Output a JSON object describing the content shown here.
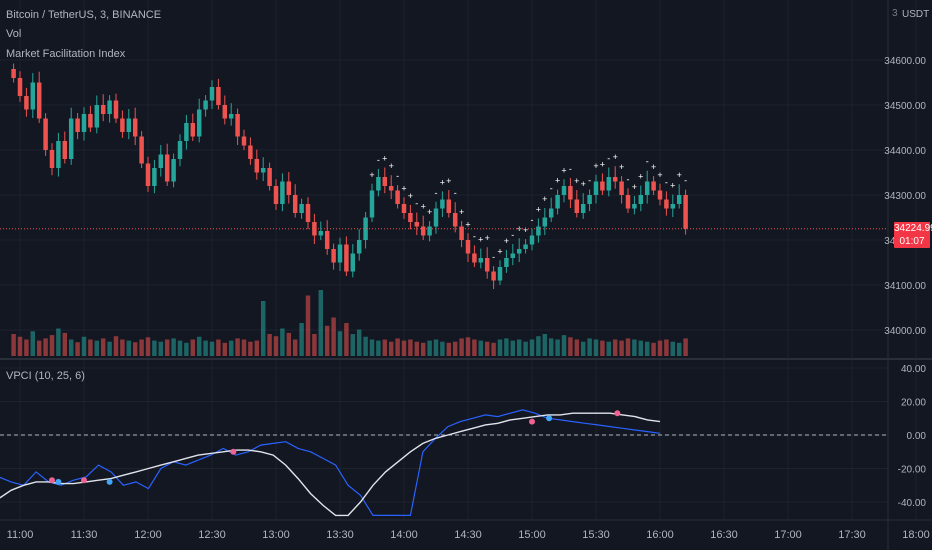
{
  "header": {
    "symbol_title": "Bitcoin / TetherUS, 3, BINANCE",
    "vol_label": "Vol",
    "mfi_label": "Market Facilitation Index",
    "vpci_label": "VPCI (10, 25, 6)",
    "currency_badge": "USDT",
    "axis_mode": "3"
  },
  "price_axis": {
    "ticks": [
      "34600.00",
      "34500.00",
      "34400.00",
      "34300.00",
      "34200.00",
      "34100.00",
      "34000.00"
    ],
    "tick_values": [
      34600,
      34500,
      34400,
      34300,
      34200,
      34100,
      34000
    ],
    "current_price": "34224.99",
    "countdown": "01:07"
  },
  "vpci_axis": {
    "ticks": [
      "40.00",
      "20.00",
      "0.00",
      "-20.00",
      "-40.00"
    ],
    "tick_values": [
      40,
      20,
      0,
      -20,
      -40
    ]
  },
  "time_axis": {
    "labels": [
      "11:00",
      "11:30",
      "12:00",
      "12:30",
      "13:00",
      "13:30",
      "14:00",
      "14:30",
      "15:00",
      "15:30",
      "16:00",
      "16:30",
      "17:00",
      "17:30",
      "18:00"
    ]
  },
  "colors": {
    "up": "#26a69a",
    "down": "#ef5350",
    "vpci_line": "#2962ff",
    "signal_line": "#e0e3eb",
    "marker_red": "#f06292",
    "marker_blue": "#42a5f5",
    "background": "#131722",
    "grid": "#1e222d"
  },
  "chart_data": [
    {
      "type": "candlestick",
      "bar_interval_minutes": 3,
      "first_bar_time": "10:57",
      "close_series": [
        34560,
        34520,
        34490,
        34550,
        34470,
        34400,
        34360,
        34420,
        34380,
        34470,
        34440,
        34480,
        34450,
        34500,
        34480,
        34510,
        34470,
        34440,
        34470,
        34430,
        34370,
        34320,
        34360,
        34390,
        34330,
        34380,
        34420,
        34460,
        34430,
        34490,
        34510,
        34540,
        34500,
        34470,
        34480,
        34430,
        34410,
        34380,
        34350,
        34360,
        34320,
        34280,
        34330,
        34300,
        34260,
        34280,
        34240,
        34210,
        34220,
        34180,
        34150,
        34190,
        34130,
        34170,
        34200,
        34250,
        34310,
        34340,
        34320,
        34310,
        34280,
        34260,
        34240,
        34230,
        34210,
        34230,
        34270,
        34290,
        34260,
        34230,
        34200,
        34170,
        34150,
        34160,
        34130,
        34110,
        34140,
        34160,
        34170,
        34180,
        34190,
        34210,
        34230,
        34250,
        34270,
        34300,
        34320,
        34290,
        34260,
        34280,
        34300,
        34330,
        34310,
        34340,
        34330,
        34300,
        34270,
        34280,
        34300,
        34330,
        34310,
        34290,
        34270,
        34280,
        34300,
        34225
      ],
      "volume_series": [
        40,
        35,
        30,
        45,
        28,
        32,
        38,
        50,
        42,
        30,
        25,
        35,
        30,
        28,
        32,
        26,
        36,
        30,
        28,
        25,
        30,
        34,
        28,
        26,
        30,
        32,
        28,
        24,
        30,
        35,
        28,
        26,
        30,
        24,
        28,
        32,
        30,
        26,
        28,
        100,
        40,
        36,
        50,
        42,
        30,
        60,
        110,
        40,
        120,
        55,
        70,
        45,
        60,
        40,
        48,
        35,
        30,
        28,
        30,
        26,
        32,
        28,
        30,
        26,
        24,
        28,
        30,
        26,
        24,
        26,
        32,
        34,
        30,
        28,
        26,
        24,
        30,
        32,
        28,
        30,
        26,
        30,
        36,
        40,
        32,
        30,
        38,
        34,
        30,
        26,
        32,
        30,
        28,
        26,
        30,
        28,
        32,
        30,
        28,
        26,
        24,
        28,
        30,
        26,
        24,
        32
      ]
    },
    {
      "type": "line",
      "title": "VPCI (10, 25, 6)",
      "ylim": [
        -48,
        42
      ],
      "vpci": [
        -25,
        -28,
        -30,
        -22,
        -28,
        -30,
        -27,
        -25,
        -18,
        -22,
        -30,
        -28,
        -32,
        -20,
        -16,
        -18,
        -15,
        -12,
        -8,
        -12,
        -10,
        -6,
        -5,
        -4,
        -8,
        -10,
        -14,
        -18,
        -30,
        -36,
        -48,
        -48,
        -48,
        -48,
        -10,
        -2,
        5,
        8,
        10,
        12,
        11,
        13,
        15,
        13,
        10,
        9,
        8,
        7,
        6,
        5,
        4,
        3,
        2,
        1
      ],
      "signal": [
        -38,
        -33,
        -30,
        -28,
        -28,
        -29,
        -29,
        -28,
        -27,
        -26,
        -24,
        -22,
        -20,
        -18,
        -16,
        -14,
        -12,
        -11,
        -10,
        -9,
        -9,
        -10,
        -12,
        -18,
        -26,
        -35,
        -42,
        -48,
        -48,
        -40,
        -30,
        -22,
        -16,
        -10,
        -5,
        -2,
        0,
        2,
        4,
        6,
        7,
        9,
        10,
        11,
        12,
        12,
        13,
        13,
        13,
        13,
        12,
        11,
        9,
        8
      ],
      "x": [
        "11:15",
        "11:30",
        "11:30",
        "11:45",
        "12:30",
        "15:00",
        "15:05",
        "15:40"
      ]
    }
  ]
}
